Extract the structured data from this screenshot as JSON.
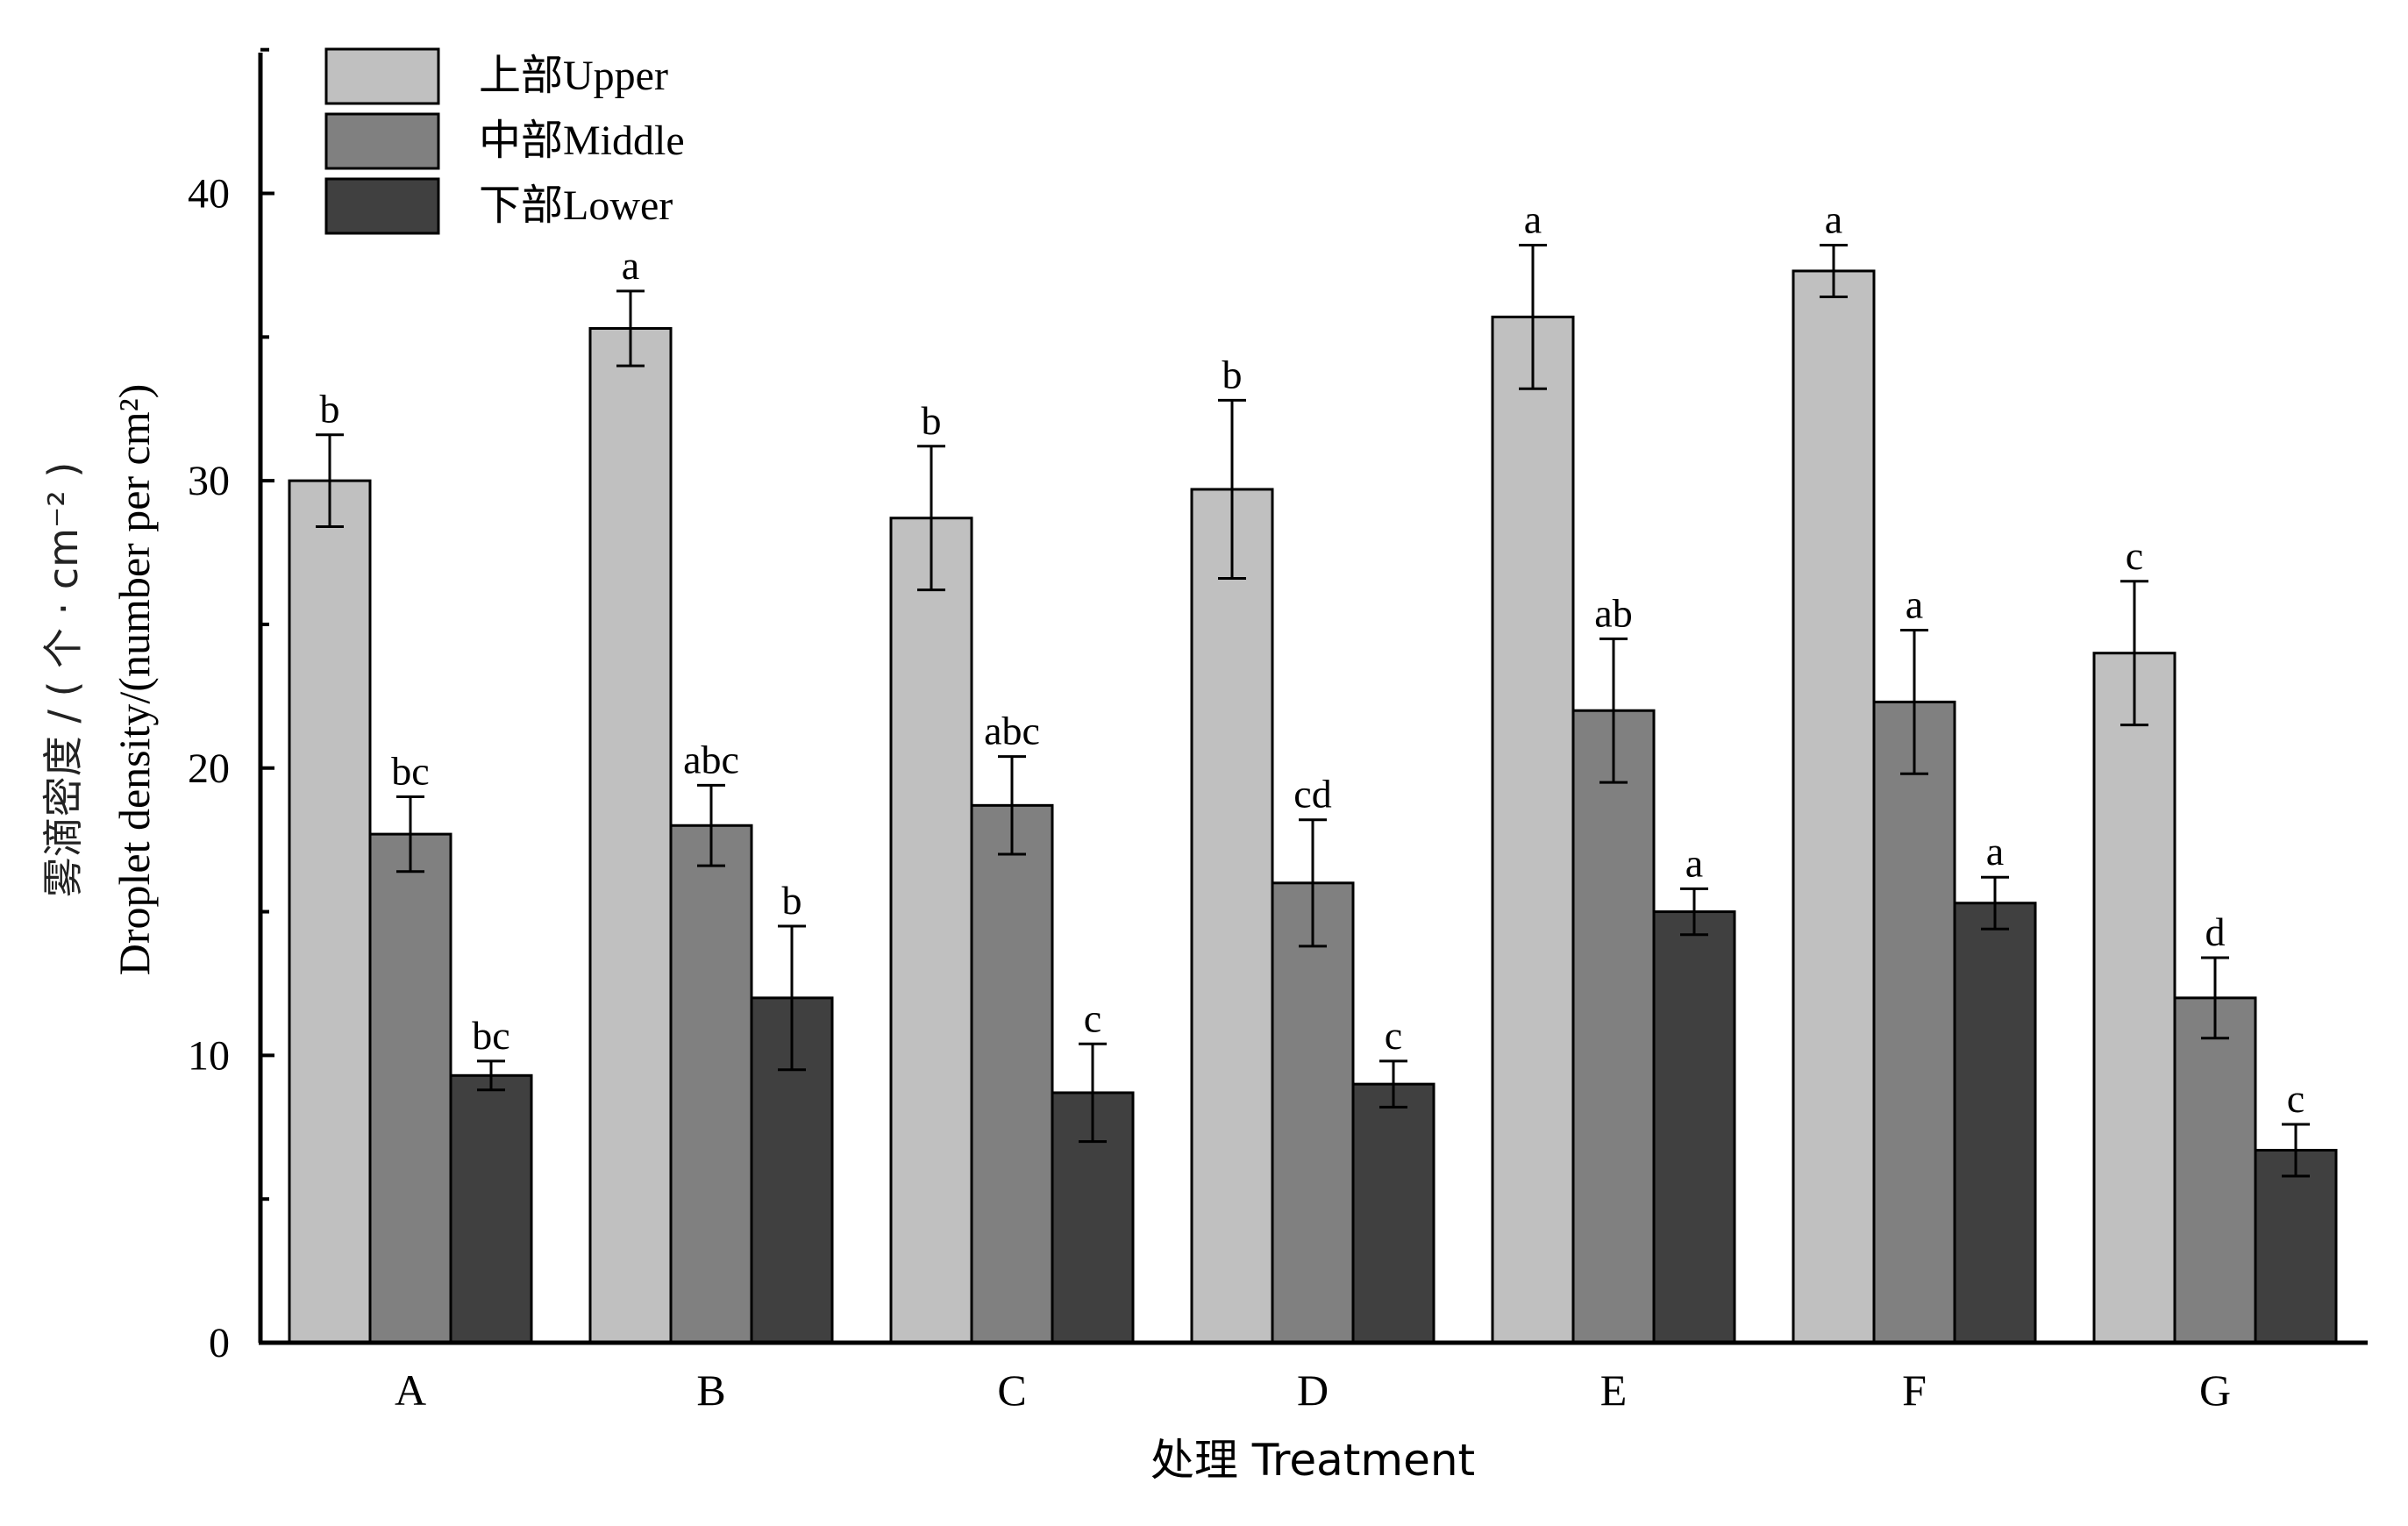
{
  "chart_data": {
    "type": "bar",
    "xlabel": "处理 Treatment",
    "ylabel_cn": "雾滴密度 / ( 个 · cm⁻² )",
    "ylabel_en": "Droplet density/(number per cm²)",
    "ylim": [
      0,
      45
    ],
    "yticks": [
      "0",
      "10",
      "20",
      "30",
      "40"
    ],
    "categories": [
      "A",
      "B",
      "C",
      "D",
      "E",
      "F",
      "G"
    ],
    "legend_position": "top-left",
    "series": [
      {
        "name": "上部Upper",
        "color": "#c0c0c0",
        "values": [
          30.0,
          35.3,
          28.7,
          29.7,
          35.7,
          37.3,
          24.0
        ],
        "errors": [
          1.6,
          1.3,
          2.5,
          3.1,
          2.5,
          0.9,
          2.5
        ],
        "letters": [
          "b",
          "a",
          "b",
          "b",
          "a",
          "a",
          "c"
        ]
      },
      {
        "name": "中部Middle",
        "color": "#808080",
        "values": [
          17.7,
          18.0,
          18.7,
          16.0,
          22.0,
          22.3,
          12.0
        ],
        "errors": [
          1.3,
          1.4,
          1.7,
          2.2,
          2.5,
          2.5,
          1.4
        ],
        "letters": [
          "bc",
          "abc",
          "abc",
          "cd",
          "ab",
          "a",
          "d"
        ]
      },
      {
        "name": "下部Lower",
        "color": "#404040",
        "values": [
          9.3,
          12.0,
          8.7,
          9.0,
          15.0,
          15.3,
          6.7
        ],
        "errors": [
          0.5,
          2.5,
          1.7,
          0.8,
          0.8,
          0.9,
          0.9
        ],
        "letters": [
          "bc",
          "b",
          "c",
          "c",
          "a",
          "a",
          "c"
        ]
      }
    ]
  }
}
